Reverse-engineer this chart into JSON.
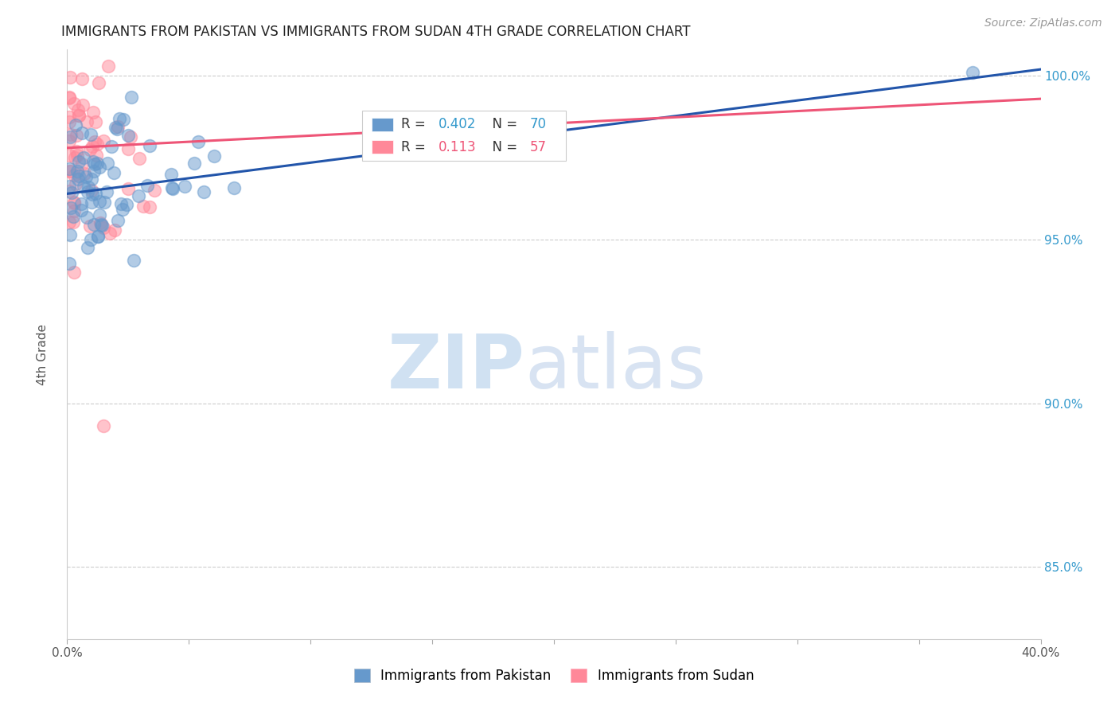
{
  "title": "IMMIGRANTS FROM PAKISTAN VS IMMIGRANTS FROM SUDAN 4TH GRADE CORRELATION CHART",
  "source": "Source: ZipAtlas.com",
  "ylabel_label": "4th Grade",
  "legend_label1": "Immigrants from Pakistan",
  "legend_label2": "Immigrants from Sudan",
  "xlim": [
    0.0,
    0.4
  ],
  "ylim": [
    0.828,
    1.008
  ],
  "xticks": [
    0.0,
    0.05,
    0.1,
    0.15,
    0.2,
    0.25,
    0.3,
    0.35,
    0.4
  ],
  "yticks": [
    0.85,
    0.9,
    0.95,
    1.0
  ],
  "R_pakistan": 0.402,
  "N_pakistan": 70,
  "R_sudan": 0.113,
  "N_sudan": 57,
  "color_pakistan": "#6699CC",
  "color_sudan": "#FF8899",
  "color_pakistan_line": "#2255AA",
  "color_sudan_line": "#EE5577",
  "background_color": "#FFFFFF",
  "pak_trendline_x": [
    0.0,
    0.4
  ],
  "pak_trendline_y": [
    0.964,
    1.002
  ],
  "sud_trendline_x": [
    0.0,
    0.4
  ],
  "sud_trendline_y": [
    0.978,
    0.993
  ]
}
